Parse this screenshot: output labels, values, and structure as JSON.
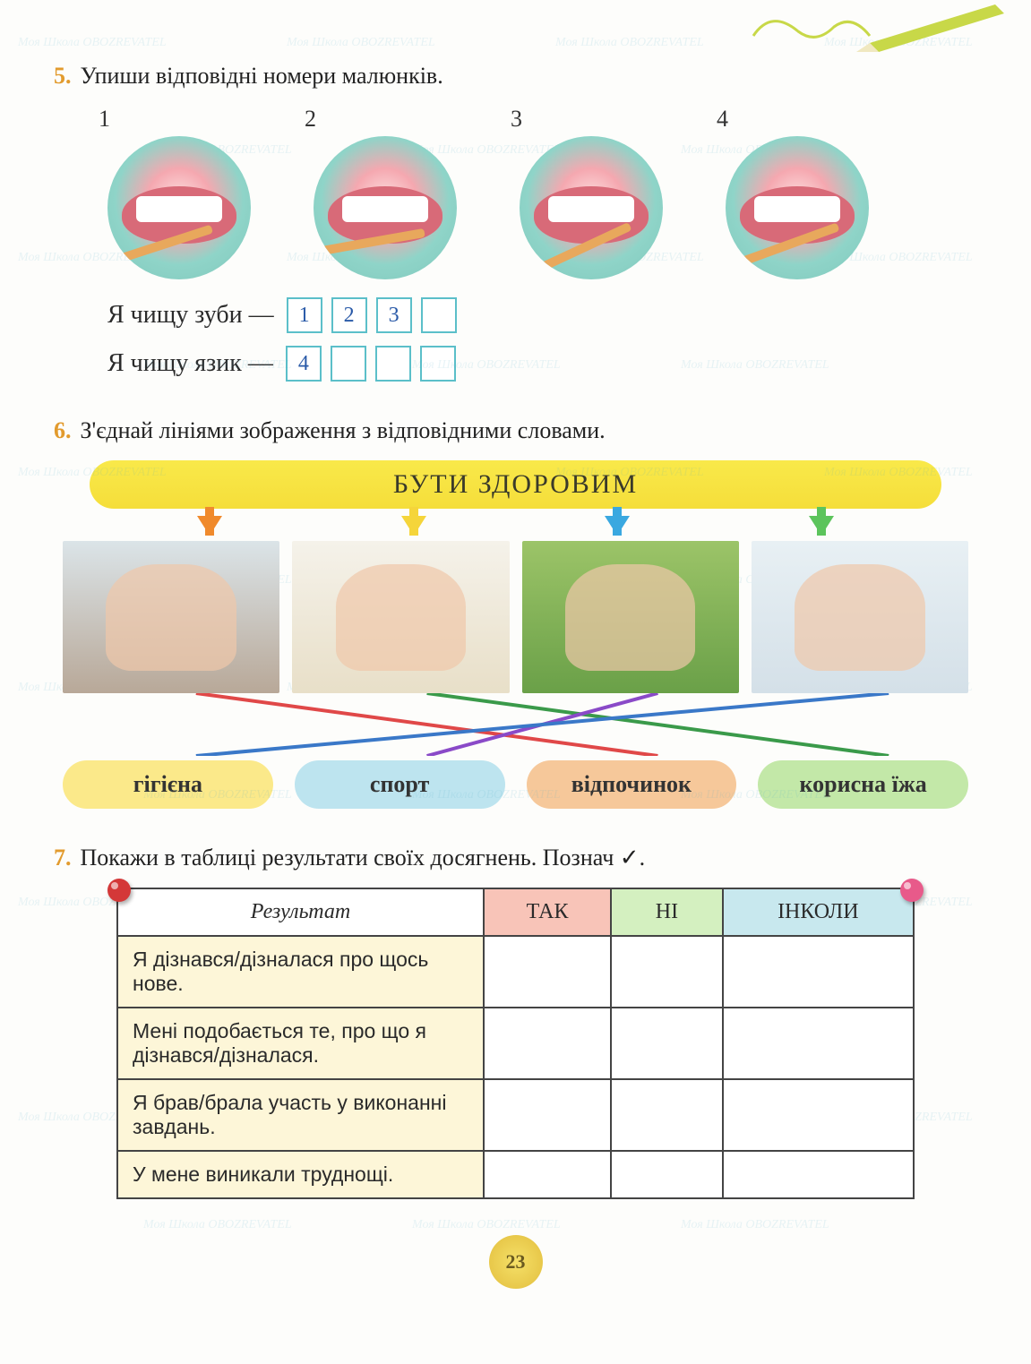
{
  "page_number": "23",
  "watermark_text": "Моя Школа  OBOZREVATEL",
  "ex5": {
    "number": "5.",
    "prompt": "Упиши відповідні номери малюнків.",
    "mouth_labels": [
      "1",
      "2",
      "3",
      "4"
    ],
    "line1_text": "Я чищу зуби —",
    "line1_boxes": [
      "1",
      "2",
      "3",
      ""
    ],
    "line2_text": "Я чищу язик —",
    "line2_boxes": [
      "4",
      "",
      "",
      ""
    ],
    "circle_bg": "#7fc8bc",
    "box_border": "#5bbfc9",
    "handwriting_color": "#2a5aa8"
  },
  "ex6": {
    "number": "6.",
    "prompt": "З'єднай лініями зображення з відповідними словами.",
    "banner": "БУТИ ЗДОРОВИМ",
    "banner_bg": "#f9e94a",
    "arrow_colors": [
      "#f08a2c",
      "#f5d53a",
      "#3aa8e0",
      "#5cc45c"
    ],
    "photos": [
      {
        "name": "sleep",
        "desc": "дитина спить"
      },
      {
        "name": "food",
        "desc": "діти їдять корисну їжу"
      },
      {
        "name": "sport",
        "desc": "діти грають у футбол"
      },
      {
        "name": "hygiene",
        "desc": "хлопчик чистить зуби"
      }
    ],
    "labels": [
      {
        "text": "гігієна",
        "bg": "#fbe98a"
      },
      {
        "text": "спорт",
        "bg": "#bde4ef"
      },
      {
        "text": "відпочинок",
        "bg": "#f6c89a"
      },
      {
        "text": "корисна їжа",
        "bg": "#c3e8a8"
      }
    ],
    "match_lines": [
      {
        "from": 0,
        "to": 2,
        "color": "#e04848"
      },
      {
        "from": 1,
        "to": 3,
        "color": "#3a9a4a"
      },
      {
        "from": 2,
        "to": 1,
        "color": "#8a4ac8"
      },
      {
        "from": 3,
        "to": 0,
        "color": "#3a78c8"
      }
    ]
  },
  "ex7": {
    "number": "7.",
    "prompt": "Покажи в таблиці результати своїх досягнень. Познач ✓.",
    "header_result": "Результат",
    "columns": [
      "ТАК",
      "НІ",
      "ІНКОЛИ"
    ],
    "col_colors": [
      "#f8c4b8",
      "#d4f0c0",
      "#c8e8ee"
    ],
    "row_bg": "#fdf6d8",
    "rows": [
      "Я дізнався/дізналася про щось нове.",
      "Мені подобається те, про що я дізнався/дізналася.",
      "Я брав/брала участь у виконанні завдань.",
      "У мене виникали труднощі."
    ],
    "pin_colors": {
      "left": "#d43838",
      "right": "#e85a8a"
    }
  }
}
